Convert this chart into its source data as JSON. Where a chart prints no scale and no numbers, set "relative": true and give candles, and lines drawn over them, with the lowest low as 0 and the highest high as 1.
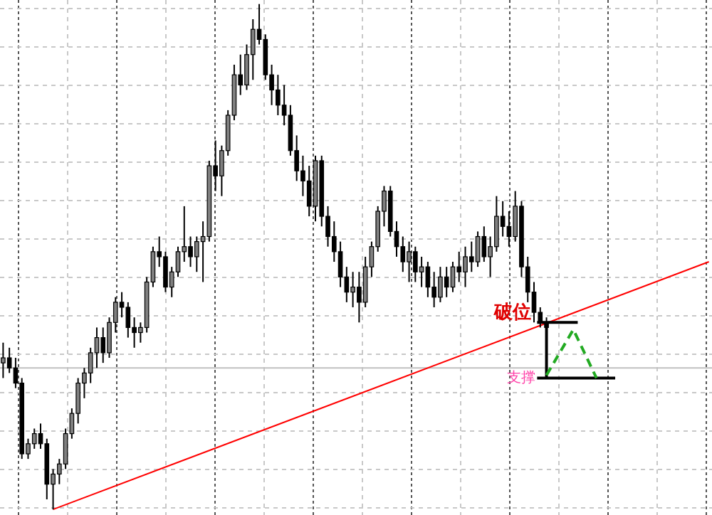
{
  "chart_data": {
    "type": "candlestick",
    "relative": true,
    "grid": true,
    "categories": [
      null,
      null,
      null,
      null,
      null,
      null,
      null,
      null,
      null,
      null,
      null,
      null,
      null,
      null,
      null,
      null,
      null,
      null,
      null,
      null,
      null,
      null,
      null,
      null,
      null,
      null,
      null,
      null,
      null,
      null,
      null,
      null,
      null,
      null,
      null,
      null,
      null,
      null,
      null,
      null,
      null,
      null,
      null,
      null,
      null,
      null,
      null,
      null,
      null,
      null,
      null,
      null,
      null,
      null,
      null,
      null,
      null,
      null,
      null,
      null,
      null,
      null,
      null,
      null,
      null,
      null,
      null,
      null,
      null,
      null,
      null,
      null,
      null,
      null,
      null,
      null,
      null,
      null,
      null,
      null,
      null,
      null,
      null,
      null,
      null,
      null,
      null,
      null,
      null,
      null,
      null,
      null,
      null,
      null,
      null,
      null,
      null,
      null,
      null,
      null,
      null,
      null,
      null,
      null,
      null,
      null,
      null,
      null,
      null,
      null,
      null,
      null,
      null,
      null
    ],
    "ohlc": [
      [
        0.29,
        0.33,
        0.26,
        0.3
      ],
      [
        0.3,
        0.32,
        0.27,
        0.28
      ],
      [
        0.28,
        0.3,
        0.24,
        0.25
      ],
      [
        0.25,
        0.26,
        0.1,
        0.11
      ],
      [
        0.11,
        0.14,
        0.1,
        0.13
      ],
      [
        0.13,
        0.16,
        0.12,
        0.15
      ],
      [
        0.15,
        0.17,
        0.12,
        0.13
      ],
      [
        0.13,
        0.14,
        0.02,
        0.05
      ],
      [
        0.05,
        0.08,
        0.0,
        0.07
      ],
      [
        0.07,
        0.1,
        0.05,
        0.09
      ],
      [
        0.09,
        0.16,
        0.08,
        0.15
      ],
      [
        0.15,
        0.2,
        0.14,
        0.19
      ],
      [
        0.19,
        0.26,
        0.17,
        0.25
      ],
      [
        0.25,
        0.28,
        0.22,
        0.27
      ],
      [
        0.27,
        0.32,
        0.25,
        0.31
      ],
      [
        0.31,
        0.36,
        0.28,
        0.34
      ],
      [
        0.34,
        0.36,
        0.29,
        0.31
      ],
      [
        0.31,
        0.38,
        0.3,
        0.37
      ],
      [
        0.37,
        0.42,
        0.35,
        0.41
      ],
      [
        0.41,
        0.43,
        0.38,
        0.4
      ],
      [
        0.4,
        0.41,
        0.34,
        0.36
      ],
      [
        0.36,
        0.38,
        0.32,
        0.35
      ],
      [
        0.35,
        0.37,
        0.33,
        0.36
      ],
      [
        0.36,
        0.46,
        0.35,
        0.45
      ],
      [
        0.45,
        0.52,
        0.44,
        0.51
      ],
      [
        0.51,
        0.54,
        0.48,
        0.5
      ],
      [
        0.5,
        0.51,
        0.43,
        0.44
      ],
      [
        0.44,
        0.48,
        0.42,
        0.47
      ],
      [
        0.47,
        0.52,
        0.46,
        0.51
      ],
      [
        0.51,
        0.6,
        0.49,
        0.52
      ],
      [
        0.52,
        0.54,
        0.48,
        0.5
      ],
      [
        0.5,
        0.54,
        0.47,
        0.53
      ],
      [
        0.53,
        0.57,
        0.45,
        0.54
      ],
      [
        0.54,
        0.69,
        0.53,
        0.68
      ],
      [
        0.68,
        0.73,
        0.63,
        0.66
      ],
      [
        0.66,
        0.72,
        0.62,
        0.71
      ],
      [
        0.71,
        0.79,
        0.7,
        0.78
      ],
      [
        0.78,
        0.88,
        0.77,
        0.86
      ],
      [
        0.86,
        0.9,
        0.82,
        0.84
      ],
      [
        0.84,
        0.92,
        0.83,
        0.9
      ],
      [
        0.9,
        0.97,
        0.85,
        0.95
      ],
      [
        0.95,
        1.0,
        0.92,
        0.93
      ],
      [
        0.93,
        0.94,
        0.85,
        0.86
      ],
      [
        0.86,
        0.88,
        0.8,
        0.83
      ],
      [
        0.83,
        0.86,
        0.78,
        0.8
      ],
      [
        0.8,
        0.84,
        0.76,
        0.78
      ],
      [
        0.78,
        0.8,
        0.7,
        0.71
      ],
      [
        0.71,
        0.74,
        0.65,
        0.67
      ],
      [
        0.67,
        0.7,
        0.62,
        0.65
      ],
      [
        0.65,
        0.68,
        0.58,
        0.6
      ],
      [
        0.6,
        0.7,
        0.57,
        0.69
      ],
      [
        0.69,
        0.7,
        0.56,
        0.58
      ],
      [
        0.58,
        0.6,
        0.52,
        0.54
      ],
      [
        0.54,
        0.57,
        0.49,
        0.51
      ],
      [
        0.51,
        0.53,
        0.44,
        0.46
      ],
      [
        0.46,
        0.48,
        0.41,
        0.43
      ],
      [
        0.43,
        0.47,
        0.4,
        0.44
      ],
      [
        0.44,
        0.47,
        0.37,
        0.41
      ],
      [
        0.41,
        0.5,
        0.4,
        0.48
      ],
      [
        0.48,
        0.53,
        0.46,
        0.52
      ],
      [
        0.52,
        0.6,
        0.51,
        0.59
      ],
      [
        0.59,
        0.64,
        0.56,
        0.63
      ],
      [
        0.63,
        0.64,
        0.54,
        0.55
      ],
      [
        0.55,
        0.57,
        0.5,
        0.52
      ],
      [
        0.52,
        0.54,
        0.47,
        0.49
      ],
      [
        0.49,
        0.53,
        0.45,
        0.51
      ],
      [
        0.51,
        0.52,
        0.45,
        0.47
      ],
      [
        0.47,
        0.5,
        0.44,
        0.48
      ],
      [
        0.48,
        0.49,
        0.42,
        0.44
      ],
      [
        0.44,
        0.47,
        0.4,
        0.42
      ],
      [
        0.42,
        0.48,
        0.41,
        0.46
      ],
      [
        0.46,
        0.48,
        0.42,
        0.44
      ],
      [
        0.44,
        0.49,
        0.43,
        0.48
      ],
      [
        0.48,
        0.51,
        0.45,
        0.47
      ],
      [
        0.47,
        0.52,
        0.44,
        0.5
      ],
      [
        0.5,
        0.53,
        0.47,
        0.49
      ],
      [
        0.49,
        0.55,
        0.48,
        0.54
      ],
      [
        0.54,
        0.56,
        0.49,
        0.5
      ],
      [
        0.5,
        0.54,
        0.46,
        0.52
      ],
      [
        0.52,
        0.62,
        0.51,
        0.58
      ],
      [
        0.58,
        0.61,
        0.54,
        0.56
      ],
      [
        0.56,
        0.59,
        0.52,
        0.54
      ],
      [
        0.54,
        0.63,
        0.53,
        0.6
      ],
      [
        0.6,
        0.61,
        0.46,
        0.48
      ],
      [
        0.48,
        0.5,
        0.41,
        0.43
      ],
      [
        0.43,
        0.45,
        0.37,
        0.39
      ],
      [
        0.39,
        0.4,
        0.36,
        0.37
      ],
      [
        0.37,
        0.38,
        0.35,
        0.36
      ],
      null,
      null,
      null,
      null,
      null,
      null,
      null,
      null,
      null,
      null,
      null,
      null,
      null,
      null,
      null,
      null,
      null,
      null,
      null,
      null,
      null,
      null,
      null,
      null,
      null,
      null
    ],
    "series": [
      {
        "type": "line",
        "color": "#ff0000",
        "values": [
          null,
          null,
          null,
          null,
          null,
          null,
          null,
          null,
          0,
          null,
          null,
          null,
          null,
          null,
          null,
          null,
          null,
          null,
          null,
          null,
          null,
          null,
          null,
          null,
          null,
          null,
          null,
          null,
          null,
          null,
          null,
          null,
          null,
          null,
          null,
          null,
          null,
          null,
          null,
          null,
          null,
          null,
          null,
          null,
          null,
          null,
          null,
          null,
          null,
          null,
          null,
          null,
          null,
          null,
          null,
          null,
          null,
          null,
          null,
          null,
          null,
          null,
          null,
          null,
          null,
          null,
          null,
          null,
          null,
          null,
          null,
          null,
          null,
          null,
          null,
          null,
          null,
          null,
          null,
          null,
          null,
          null,
          null,
          null,
          null,
          null,
          null,
          null,
          null,
          null,
          null,
          null,
          null,
          null,
          null,
          null,
          null,
          null,
          null,
          null,
          null,
          null,
          null,
          null,
          null,
          null,
          null,
          null,
          null,
          null,
          null,
          null,
          null,
          0.49
        ]
      }
    ],
    "ref_lines": [
      {
        "axis": "y",
        "value": 0.28,
        "color": "#c0c0c0"
      },
      {
        "axis": "y",
        "value": 0.37,
        "label": "破位",
        "color": "#000000"
      },
      {
        "axis": "y",
        "value": 0.26,
        "label": "支撑",
        "color": "#000000"
      }
    ]
  }
}
